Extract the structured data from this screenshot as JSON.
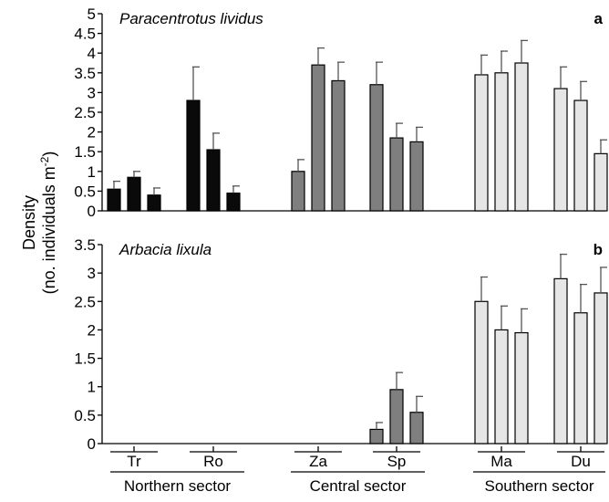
{
  "chart_data": [
    {
      "type": "bar",
      "title": "Paracentrotus lividus",
      "panel_letter": "a",
      "ylim": [
        0,
        5
      ],
      "ytick_labels": [
        "0",
        "0.5",
        "1",
        "1.5",
        "2",
        "2.5",
        "3",
        "3.5",
        "4",
        "4.5",
        "5"
      ],
      "groups": [
        {
          "site": "Tr",
          "sector": "Northern sector",
          "color": "#0a0a0a",
          "values": [
            0.55,
            0.85,
            0.4
          ],
          "errors": [
            0.2,
            0.15,
            0.18
          ]
        },
        {
          "site": "Ro",
          "sector": "Northern sector",
          "color": "#0a0a0a",
          "values": [
            2.8,
            1.55,
            0.45
          ],
          "errors": [
            0.85,
            0.42,
            0.18
          ]
        },
        {
          "site": "Za",
          "sector": "Central sector",
          "color": "#7f7f7f",
          "values": [
            1.0,
            3.7,
            3.3
          ],
          "errors": [
            0.3,
            0.43,
            0.47
          ]
        },
        {
          "site": "Sp",
          "sector": "Central sector",
          "color": "#7f7f7f",
          "values": [
            3.2,
            1.85,
            1.75
          ],
          "errors": [
            0.57,
            0.37,
            0.37
          ]
        },
        {
          "site": "Ma",
          "sector": "Southern sector",
          "color": "#e6e6e6",
          "values": [
            3.45,
            3.5,
            3.75
          ],
          "errors": [
            0.5,
            0.55,
            0.57
          ]
        },
        {
          "site": "Du",
          "sector": "Southern sector",
          "color": "#e6e6e6",
          "values": [
            3.1,
            2.8,
            1.45
          ],
          "errors": [
            0.55,
            0.48,
            0.35
          ]
        }
      ]
    },
    {
      "type": "bar",
      "title": "Arbacia lixula",
      "panel_letter": "b",
      "ylim": [
        0,
        3.5
      ],
      "ytick_labels": [
        "0",
        "0.5",
        "1",
        "1.5",
        "2",
        "2.5",
        "3",
        "3.5"
      ],
      "groups": [
        {
          "site": "Tr",
          "sector": "Northern sector",
          "color": "#0a0a0a",
          "values": [
            0,
            0,
            0
          ],
          "errors": [
            0,
            0,
            0
          ]
        },
        {
          "site": "Ro",
          "sector": "Northern sector",
          "color": "#0a0a0a",
          "values": [
            0,
            0,
            0
          ],
          "errors": [
            0,
            0,
            0
          ]
        },
        {
          "site": "Za",
          "sector": "Central sector",
          "color": "#7f7f7f",
          "values": [
            0,
            0,
            0
          ],
          "errors": [
            0,
            0,
            0
          ]
        },
        {
          "site": "Sp",
          "sector": "Central sector",
          "color": "#7f7f7f",
          "values": [
            0.25,
            0.95,
            0.55
          ],
          "errors": [
            0.12,
            0.3,
            0.28
          ]
        },
        {
          "site": "Ma",
          "sector": "Southern sector",
          "color": "#e6e6e6",
          "values": [
            2.5,
            2.0,
            1.95
          ],
          "errors": [
            0.43,
            0.42,
            0.42
          ]
        },
        {
          "site": "Du",
          "sector": "Southern sector",
          "color": "#e6e6e6",
          "values": [
            2.9,
            2.3,
            2.65
          ],
          "errors": [
            0.43,
            0.5,
            0.45
          ]
        }
      ]
    }
  ],
  "y_axis_label": {
    "line1": "Density",
    "line2_prefix": "(no. individuals m",
    "line2_superscript": "-2",
    "line2_suffix": ")"
  },
  "x_sites": [
    "Tr",
    "Ro",
    "Za",
    "Sp",
    "Ma",
    "Du"
  ],
  "sectors": [
    {
      "label": "Northern sector",
      "sites": [
        "Tr",
        "Ro"
      ]
    },
    {
      "label": "Central sector",
      "sites": [
        "Za",
        "Sp"
      ]
    },
    {
      "label": "Southern sector",
      "sites": [
        "Ma",
        "Du"
      ]
    }
  ]
}
